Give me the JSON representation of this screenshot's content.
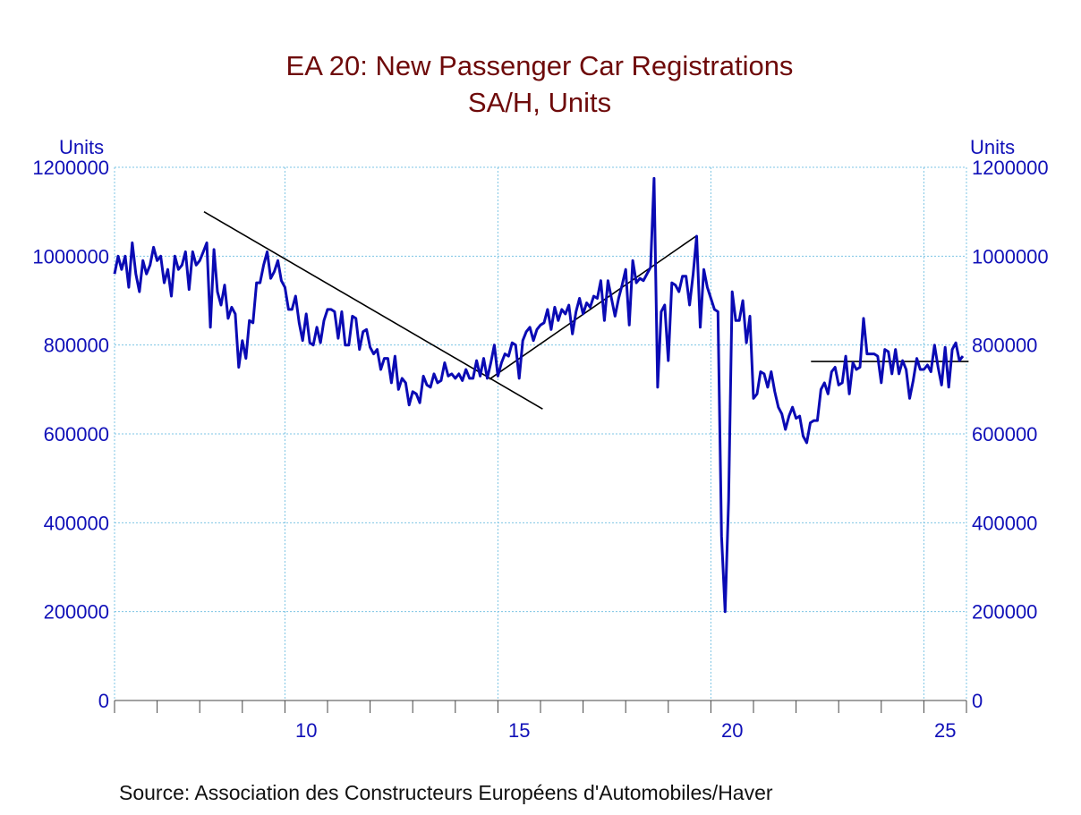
{
  "chart_data": {
    "type": "line",
    "title": "EA 20: New Passenger Car Registrations",
    "subtitle": "SA/H, Units",
    "ylabel_left": "Units",
    "ylabel_right": "Units",
    "source": "Source:  Association des Constructeurs Européens d'Automobiles/Haver",
    "ylim": [
      0,
      1200000
    ],
    "yticks": [
      0,
      200000,
      400000,
      600000,
      800000,
      1000000,
      1200000
    ],
    "xlim": [
      2006,
      2026
    ],
    "xtick_labels": [
      {
        "year": 2010,
        "label": "10"
      },
      {
        "year": 2015,
        "label": "15"
      },
      {
        "year": 2020,
        "label": "20"
      },
      {
        "year": 2025,
        "label": "25"
      }
    ],
    "grid": true,
    "frequency": "monthly",
    "start": "2006-01",
    "line_color": "#0a0ab4",
    "title_color": "#6e0a0a",
    "axis_color": "#1010b8",
    "grid_color": "#7cc4e4",
    "values": [
      960000,
      1000000,
      970000,
      1000000,
      930000,
      1030000,
      960000,
      920000,
      990000,
      960000,
      980000,
      1020000,
      990000,
      1000000,
      940000,
      970000,
      910000,
      1000000,
      970000,
      980000,
      1010000,
      925000,
      1010000,
      980000,
      990000,
      1010000,
      1030000,
      840000,
      1015000,
      920000,
      890000,
      935000,
      860000,
      885000,
      870000,
      750000,
      810000,
      770000,
      855000,
      850000,
      940000,
      940000,
      980000,
      1010000,
      950000,
      965000,
      990000,
      945000,
      930000,
      880000,
      880000,
      910000,
      850000,
      810000,
      870000,
      805000,
      800000,
      840000,
      805000,
      855000,
      880000,
      880000,
      875000,
      815000,
      875000,
      800000,
      800000,
      865000,
      860000,
      790000,
      830000,
      835000,
      795000,
      780000,
      790000,
      745000,
      770000,
      770000,
      715000,
      775000,
      700000,
      725000,
      715000,
      665000,
      695000,
      690000,
      670000,
      730000,
      710000,
      705000,
      735000,
      715000,
      720000,
      760000,
      730000,
      735000,
      725000,
      735000,
      720000,
      745000,
      725000,
      725000,
      765000,
      730000,
      770000,
      725000,
      760000,
      800000,
      730000,
      760000,
      780000,
      775000,
      805000,
      800000,
      725000,
      810000,
      830000,
      840000,
      810000,
      835000,
      845000,
      850000,
      880000,
      835000,
      885000,
      855000,
      880000,
      870000,
      890000,
      825000,
      875000,
      905000,
      870000,
      895000,
      885000,
      910000,
      905000,
      945000,
      855000,
      945000,
      905000,
      865000,
      905000,
      935000,
      970000,
      845000,
      990000,
      940000,
      950000,
      945000,
      960000,
      975000,
      1175000,
      705000,
      875000,
      890000,
      765000,
      940000,
      935000,
      920000,
      955000,
      955000,
      890000,
      960000,
      1045000,
      840000,
      970000,
      930000,
      905000,
      880000,
      875000,
      370000,
      200000,
      450000,
      920000,
      855000,
      855000,
      900000,
      805000,
      865000,
      680000,
      690000,
      740000,
      735000,
      705000,
      740000,
      695000,
      660000,
      645000,
      610000,
      640000,
      660000,
      635000,
      640000,
      595000,
      580000,
      625000,
      630000,
      630000,
      700000,
      715000,
      690000,
      740000,
      750000,
      710000,
      715000,
      775000,
      690000,
      760000,
      745000,
      750000,
      860000,
      780000,
      780000,
      780000,
      775000,
      715000,
      790000,
      785000,
      735000,
      790000,
      735000,
      765000,
      745000,
      680000,
      720000,
      770000,
      745000,
      745000,
      755000,
      740000,
      800000,
      750000,
      710000,
      795000,
      705000,
      790000,
      805000,
      765000,
      775000
    ],
    "trend_lines": [
      {
        "from": [
          2008.1,
          1100000
        ],
        "to": [
          2016.05,
          656000
        ]
      },
      {
        "from": [
          2014.8,
          723000
        ],
        "to": [
          2019.65,
          1045000
        ]
      },
      {
        "from": [
          2022.35,
          763000
        ],
        "to": [
          2026.05,
          763000
        ]
      }
    ]
  }
}
